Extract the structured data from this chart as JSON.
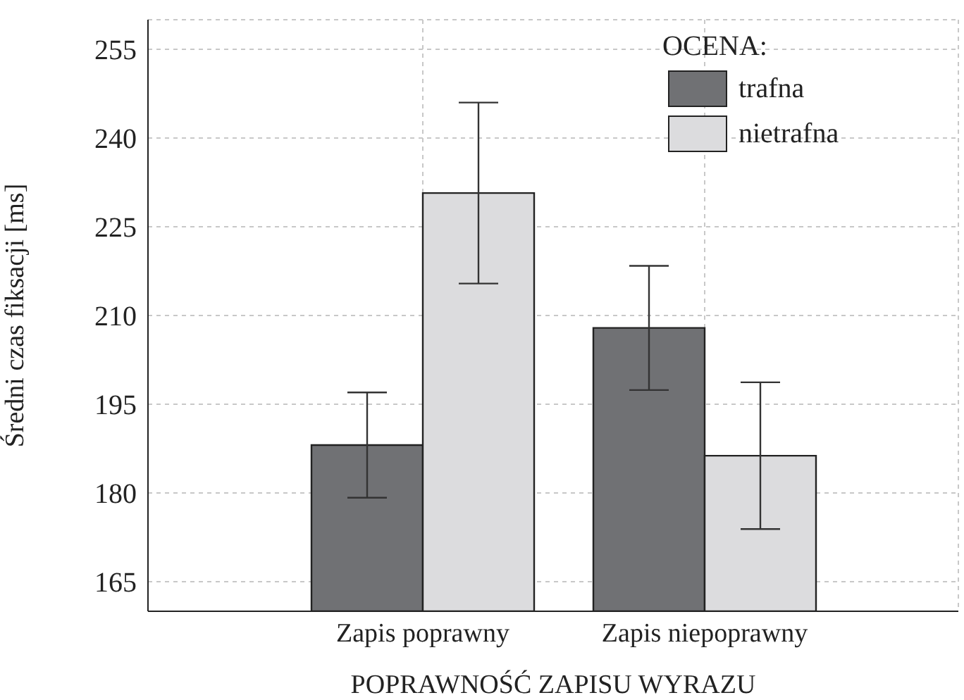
{
  "chart_data": {
    "type": "bar",
    "categories": [
      "Zapis poprawny",
      "Zapis niepoprawny"
    ],
    "xlabel": "POPRAWNOŚĆ ZAPISU WYRAZU",
    "ylabel": "Średni czas fiksacji [ms]",
    "legend_title": "OCENA:",
    "series": [
      {
        "name": "trafna",
        "color": "#707174",
        "values": [
          188.1,
          207.9
        ],
        "errors": [
          8.9,
          10.5
        ]
      },
      {
        "name": "nietrafna",
        "color": "#dcdcde",
        "values": [
          230.7,
          186.3
        ],
        "errors": [
          15.3,
          12.4
        ]
      }
    ],
    "ylim": [
      160,
      260
    ],
    "yticks": [
      165,
      180,
      195,
      210,
      225,
      240,
      255
    ],
    "grid": true,
    "legend": "top right"
  }
}
